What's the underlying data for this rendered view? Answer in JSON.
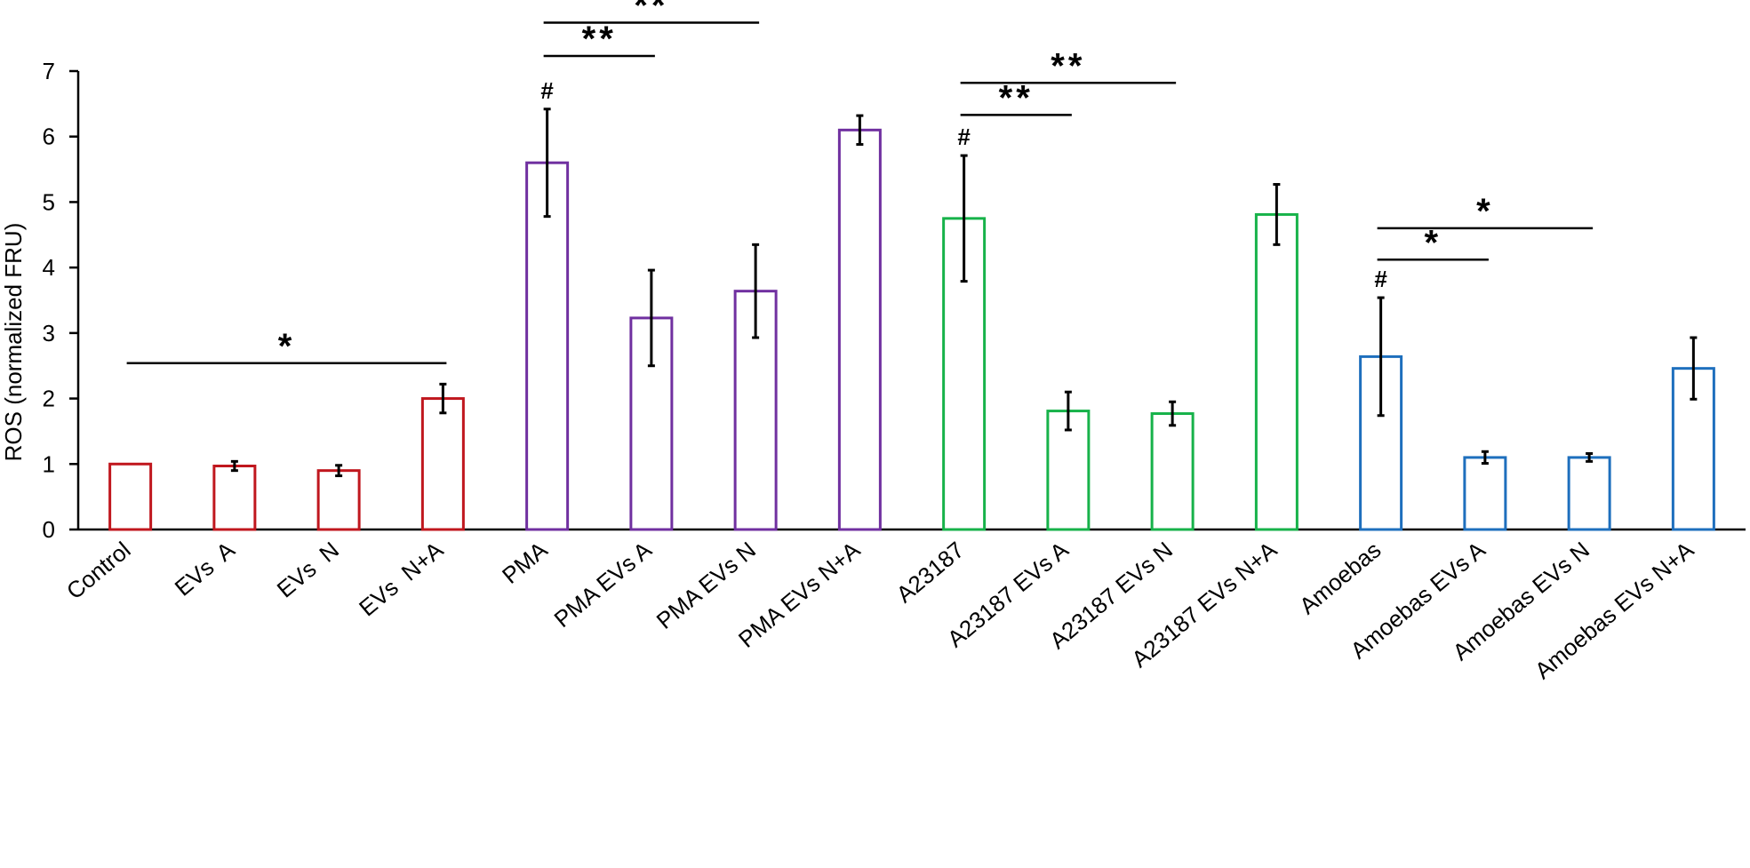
{
  "chart_data": {
    "type": "bar",
    "title": "",
    "xlabel": "",
    "ylabel": "ROS (normalized FRU)",
    "ylim": [
      0,
      7
    ],
    "yticks": [
      0,
      1,
      2,
      3,
      4,
      5,
      6,
      7
    ],
    "grid": false,
    "legend": "none",
    "categories": [
      "Control",
      "EVs  A",
      "EVs  N",
      "EVs  N+A",
      "PMA",
      "PMA EVs A",
      "PMA EVs N",
      "PMA EVs N+A",
      "A23187",
      "A23187 EVs A",
      "A23187 EVs N",
      "A23187 EVs N+A",
      "Amoebas",
      "Amoebas EVs A",
      "Amoebas EVs N",
      "Amoebas EVs N+A"
    ],
    "values": [
      1.0,
      0.97,
      0.9,
      2.0,
      5.6,
      3.23,
      3.64,
      6.1,
      4.75,
      1.81,
      1.77,
      4.81,
      2.64,
      1.1,
      1.1,
      2.46
    ],
    "errors": [
      0.0,
      0.07,
      0.08,
      0.22,
      0.82,
      0.73,
      0.71,
      0.22,
      0.96,
      0.29,
      0.18,
      0.46,
      0.9,
      0.09,
      0.06,
      0.47
    ],
    "group_colors": [
      "#c0171e",
      "#7030a0",
      "#17b24a",
      "#1e6fbd"
    ],
    "group_of_bar": [
      0,
      0,
      0,
      0,
      1,
      1,
      1,
      1,
      2,
      2,
      2,
      2,
      3,
      3,
      3,
      3
    ],
    "hash_markers": [
      {
        "bar": 4,
        "text": "#"
      },
      {
        "bar": 8,
        "text": "#"
      },
      {
        "bar": 12,
        "text": "#"
      }
    ],
    "significance": [
      {
        "from": 0,
        "to": 3,
        "y": 2.54,
        "label": "*"
      },
      {
        "from": 4,
        "to": 5,
        "y": 7.23,
        "label": "**"
      },
      {
        "from": 4,
        "to": 6,
        "y": 7.74,
        "label": "**"
      },
      {
        "from": 8,
        "to": 9,
        "y": 6.33,
        "label": "**"
      },
      {
        "from": 8,
        "to": 10,
        "y": 6.82,
        "label": "**"
      },
      {
        "from": 12,
        "to": 13,
        "y": 4.12,
        "label": "*"
      },
      {
        "from": 12,
        "to": 14,
        "y": 4.6,
        "label": "*"
      }
    ]
  }
}
